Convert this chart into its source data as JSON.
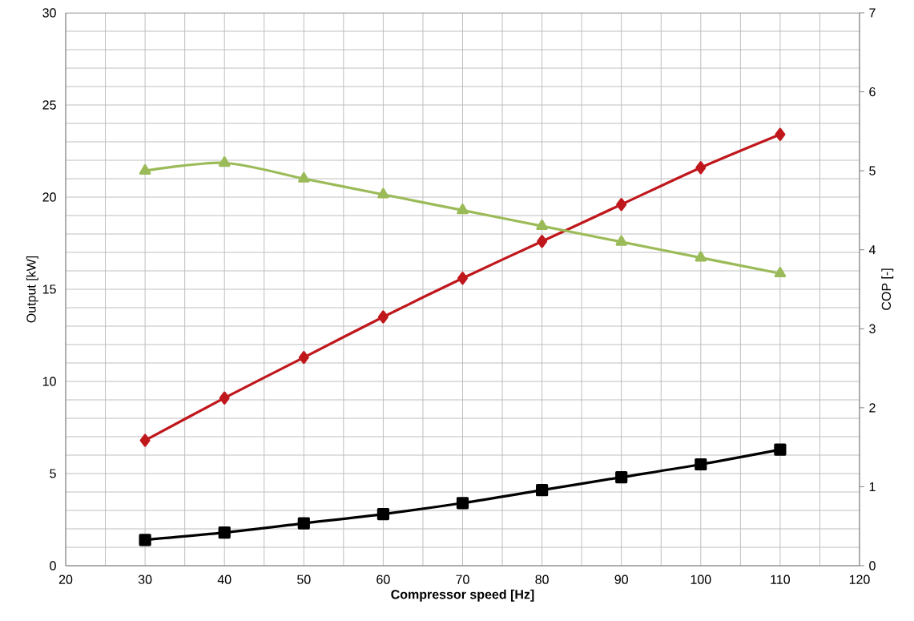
{
  "chart_data": {
    "type": "line",
    "xlabel": "Compressor speed [Hz]",
    "ylabel": "Output  [kW]",
    "y2label": "COP [-]",
    "x": [
      30,
      40,
      50,
      60,
      70,
      80,
      90,
      100,
      110
    ],
    "xlim": [
      20,
      120
    ],
    "xticks": [
      20,
      {
        "value": 25,
        "label": null
      },
      30,
      {
        "value": 35,
        "label": null
      },
      40,
      {
        "value": 45,
        "label": null
      },
      50,
      {
        "value": 55,
        "label": null
      },
      60,
      {
        "value": 65,
        "label": null
      },
      70,
      {
        "value": 75,
        "label": null
      },
      80,
      {
        "value": 85,
        "label": null
      },
      90,
      {
        "value": 95,
        "label": null
      },
      100,
      {
        "value": 105,
        "label": null
      },
      110,
      {
        "value": 115,
        "label": null
      },
      120
    ],
    "ylim": [
      0,
      30
    ],
    "yticks": [
      0,
      {
        "value": 1,
        "label": null
      },
      {
        "value": 2,
        "label": null
      },
      {
        "value": 3,
        "label": null
      },
      {
        "value": 4,
        "label": null
      },
      5,
      {
        "value": 6,
        "label": null
      },
      {
        "value": 7,
        "label": null
      },
      {
        "value": 8,
        "label": null
      },
      {
        "value": 9,
        "label": null
      },
      10,
      {
        "value": 11,
        "label": null
      },
      {
        "value": 12,
        "label": null
      },
      {
        "value": 13,
        "label": null
      },
      {
        "value": 14,
        "label": null
      },
      15,
      {
        "value": 16,
        "label": null
      },
      {
        "value": 17,
        "label": null
      },
      {
        "value": 18,
        "label": null
      },
      {
        "value": 19,
        "label": null
      },
      20,
      {
        "value": 21,
        "label": null
      },
      {
        "value": 22,
        "label": null
      },
      {
        "value": 23,
        "label": null
      },
      {
        "value": 24,
        "label": null
      },
      25,
      {
        "value": 26,
        "label": null
      },
      {
        "value": 27,
        "label": null
      },
      {
        "value": 28,
        "label": null
      },
      {
        "value": 29,
        "label": null
      },
      30
    ],
    "y2lim": [
      0,
      7
    ],
    "y2ticks": [
      0,
      1,
      2,
      3,
      4,
      5,
      6,
      7
    ],
    "grid": true,
    "line_style": "solid",
    "series": [
      {
        "color": "#c0171c",
        "marker": "diamond",
        "values": [
          6.8,
          9.1,
          11.3,
          13.5,
          15.6,
          17.6,
          19.6,
          21.6,
          23.4
        ]
      },
      {
        "color": "#000000",
        "marker": "square",
        "values": [
          1.4,
          1.8,
          2.3,
          2.8,
          3.4,
          4.1,
          4.8,
          5.5,
          6.3
        ]
      },
      {
        "color": "#9bbb59",
        "marker": "triangle",
        "axis": "y2",
        "values": [
          5.0,
          5.1,
          4.9,
          4.7,
          4.5,
          4.3,
          4.1,
          3.9,
          3.7
        ]
      }
    ]
  }
}
